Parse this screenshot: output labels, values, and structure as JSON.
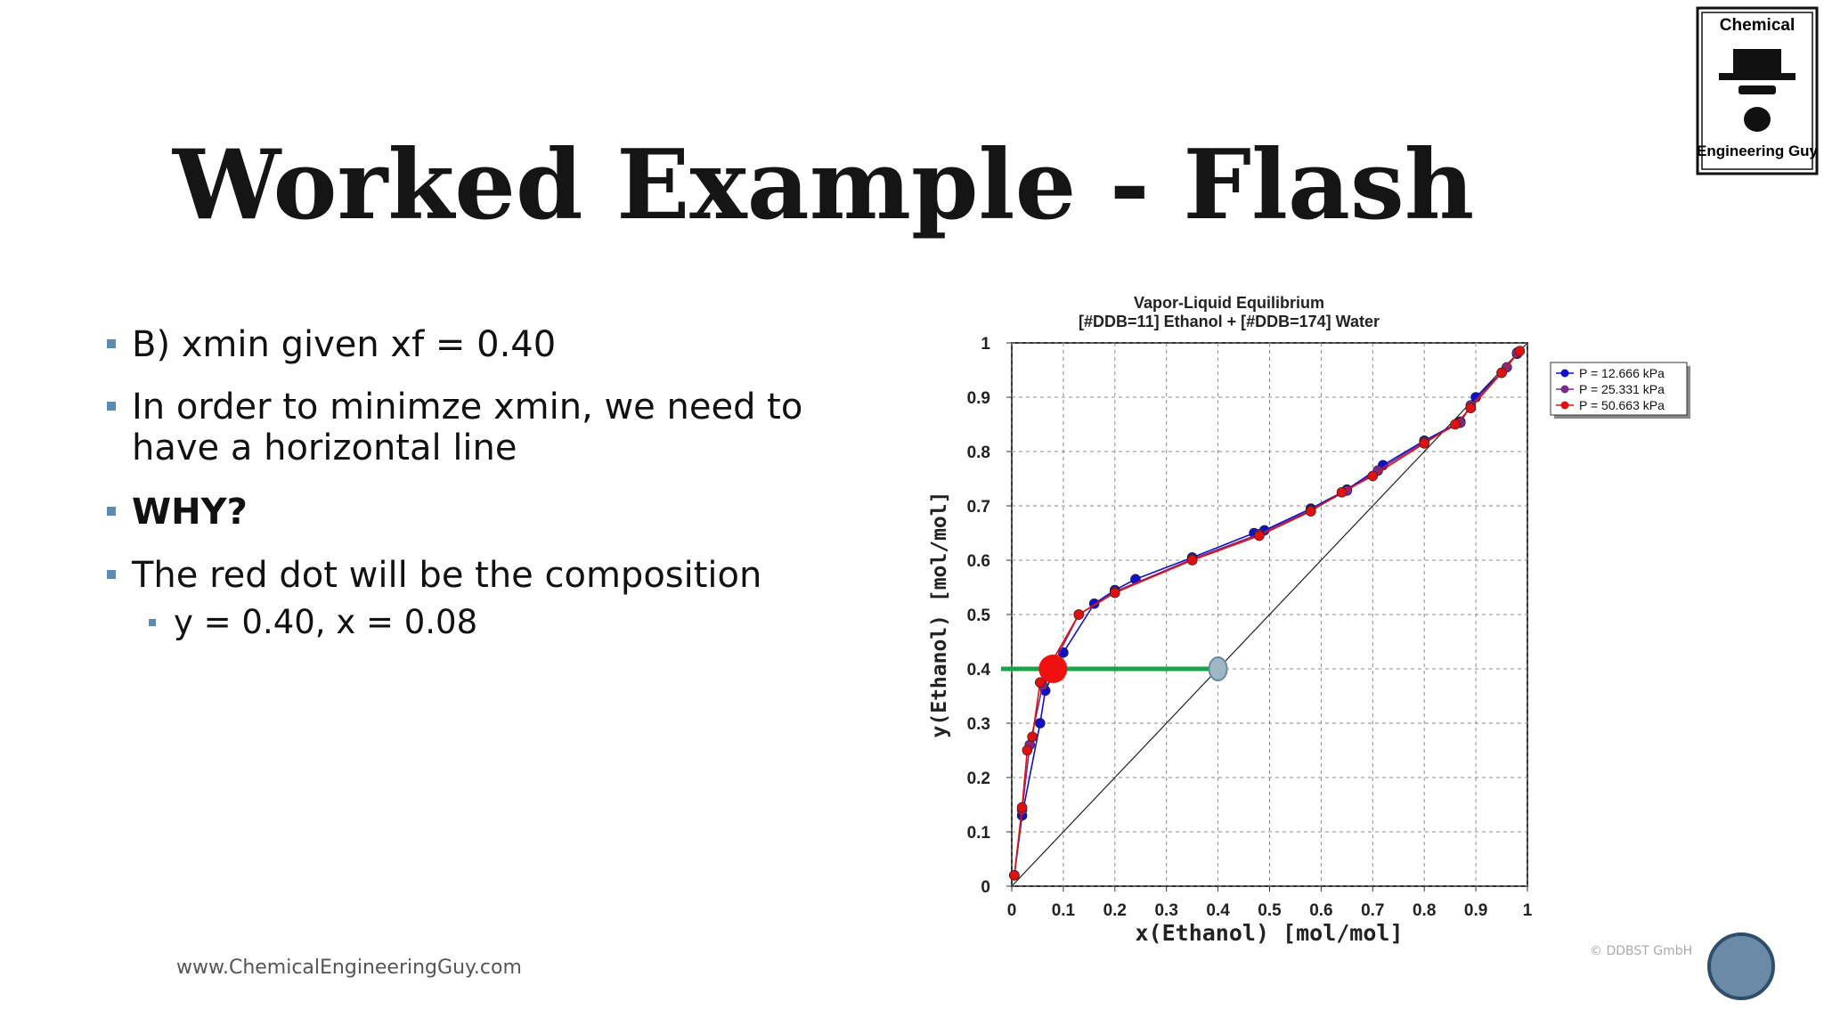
{
  "slide": {
    "title": "Worked Example - Flash",
    "bullets": [
      [
        "B) xmin given xf = 0.40"
      ],
      [
        "In order to minimze xmin, we need to",
        "have a horizontal line"
      ],
      [
        "WHY?"
      ],
      [
        "The red dot will be the composition"
      ]
    ],
    "sub_bullet": "y = 0.40, x = 0.08",
    "footer": "www.ChemicalEngineeringGuy.com",
    "logo": [
      "Chemical",
      "Engineering Guy"
    ],
    "credit": "© DDBST GmbH"
  },
  "chart_data": {
    "type": "line",
    "title": "Vapor-Liquid Equilibrium",
    "subtitle": "[#DDB=11] Ethanol + [#DDB=174] Water",
    "x_label": "x(Ethanol) [mol/mol]",
    "y_label": "y(Ethanol) [mol/mol]",
    "xlim": [
      0,
      1
    ],
    "ylim": [
      0,
      1
    ],
    "xticks": [
      0,
      0.1,
      0.2,
      0.3,
      0.4,
      0.5,
      0.6,
      0.7,
      0.8,
      0.9,
      1
    ],
    "yticks": [
      0,
      0.1,
      0.2,
      0.3,
      0.4,
      0.5,
      0.6,
      0.7,
      0.8,
      0.9,
      1
    ],
    "grid": true,
    "legend_position": "right",
    "series": [
      {
        "name": "P = 12.666 kPa",
        "color": "#1010c8",
        "x": [
          0.005,
          0.02,
          0.055,
          0.065,
          0.1,
          0.16,
          0.2,
          0.24,
          0.35,
          0.47,
          0.49,
          0.58,
          0.65,
          0.72,
          0.8,
          0.87,
          0.9,
          0.95,
          0.98
        ],
        "values": [
          0.02,
          0.13,
          0.3,
          0.36,
          0.43,
          0.52,
          0.545,
          0.565,
          0.605,
          0.65,
          0.655,
          0.695,
          0.73,
          0.775,
          0.82,
          0.855,
          0.9,
          0.945,
          0.98
        ]
      },
      {
        "name": "P = 25.331 kPa",
        "color": "#7a2a8a",
        "x": [
          0.005,
          0.02,
          0.035,
          0.06,
          0.13,
          0.2,
          0.35,
          0.48,
          0.58,
          0.65,
          0.71,
          0.8,
          0.87,
          0.89,
          0.96,
          0.98
        ],
        "values": [
          0.02,
          0.14,
          0.26,
          0.37,
          0.5,
          0.542,
          0.602,
          0.648,
          0.692,
          0.728,
          0.765,
          0.818,
          0.853,
          0.885,
          0.955,
          0.982
        ]
      },
      {
        "name": "P = 50.663 kPa",
        "color": "#e01010",
        "x": [
          0.005,
          0.02,
          0.03,
          0.04,
          0.055,
          0.13,
          0.2,
          0.35,
          0.48,
          0.58,
          0.64,
          0.7,
          0.8,
          0.86,
          0.89,
          0.95,
          0.985
        ],
        "values": [
          0.02,
          0.145,
          0.25,
          0.275,
          0.375,
          0.5,
          0.54,
          0.6,
          0.645,
          0.69,
          0.725,
          0.755,
          0.815,
          0.85,
          0.88,
          0.945,
          0.985
        ]
      }
    ],
    "annotations": {
      "feed": {
        "x": 0.4,
        "y": 0.4
      },
      "operating_point": {
        "x": 0.08,
        "y": 0.4
      }
    }
  }
}
